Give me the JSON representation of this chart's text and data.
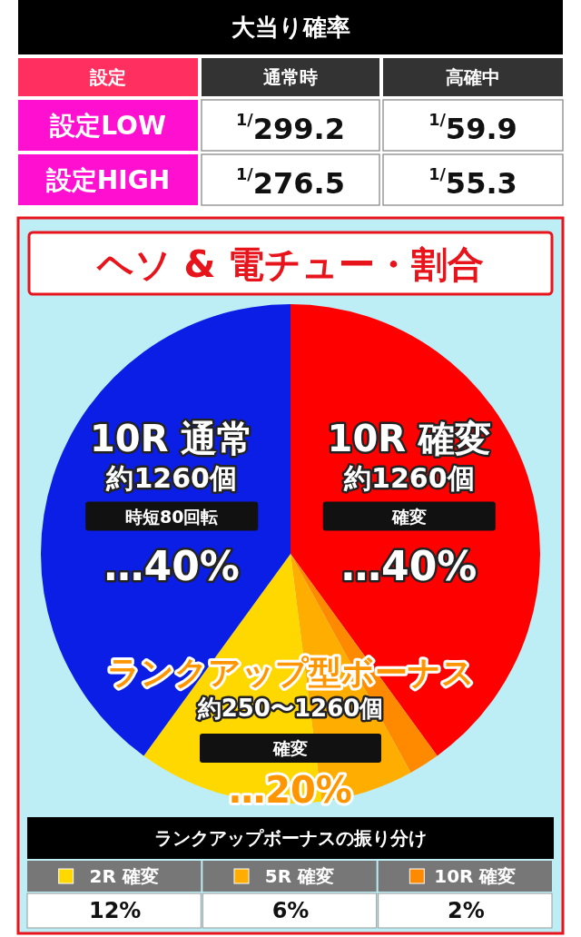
{
  "chart_data": [
    {
      "type": "other",
      "title": "大当り確率",
      "annotations": [
        "設定"
      ],
      "categories": [
        "通常時",
        "高確中"
      ],
      "y_categories": [
        "設定LOW",
        "設定HIGH"
      ],
      "cell_labels": [
        [
          "$^{1/}$299.2",
          "$^{1/}$59.9"
        ],
        [
          "$^{1/}$276.5",
          "$^{1/}$55.3"
        ]
      ]
    },
    {
      "type": "pie",
      "title": "ヘソ & 電チュー・割合",
      "categories": [
        "10R 確変",
        "10R 確変",
        "5R 確変",
        "2R 確変",
        "10R 通常"
      ],
      "values": [
        40,
        2,
        6,
        12,
        40
      ],
      "colors": [
        "#ff0000",
        "#ff8a00",
        "#ffae00",
        "#ffd800",
        "#0a1ee6"
      ],
      "value_labels": [
        "…40%",
        "2%",
        "6%",
        "12%",
        "…40%"
      ],
      "legend": "bottom",
      "annotations": [
        "約1260個",
        "約1260個",
        "時短80回転",
        "確変",
        "ランクアップ型ボーナス",
        "約250〜1260個",
        "確変",
        "…20%",
        "ランクアップボーナスの振り分け"
      ]
    }
  ]
}
